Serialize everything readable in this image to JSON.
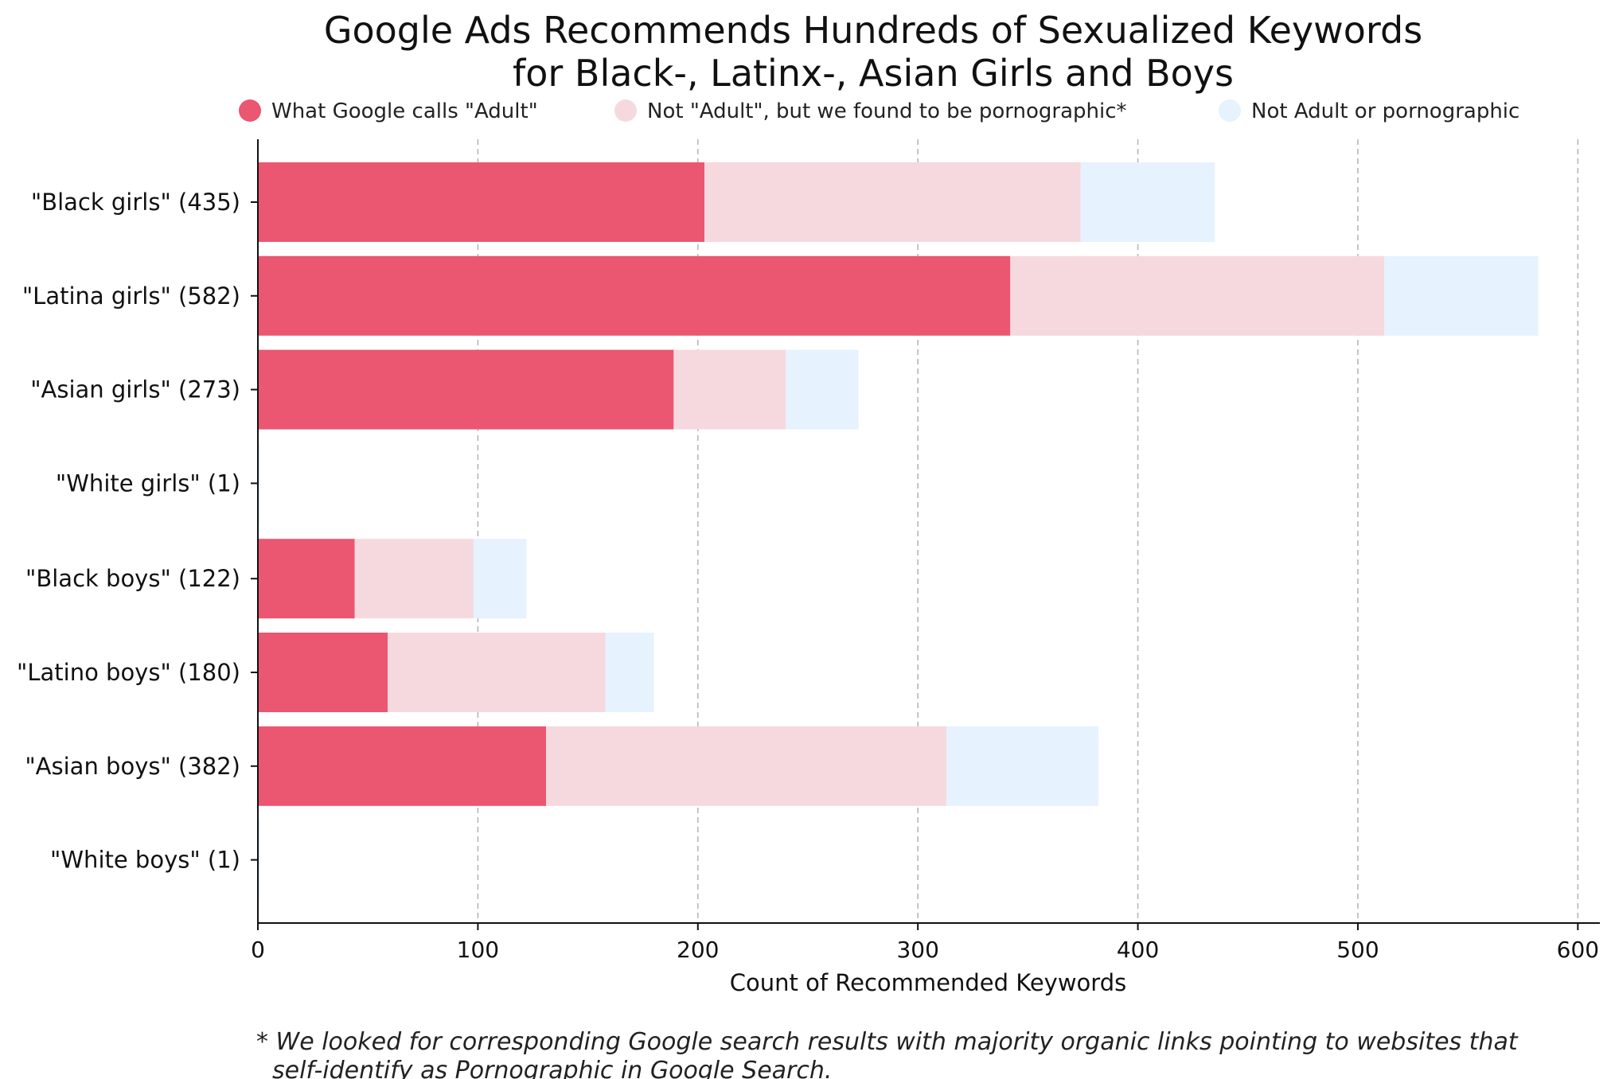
{
  "chart_data": {
    "type": "bar",
    "orientation": "horizontal",
    "stacked": true,
    "title": [
      "Google Ads Recommends Hundreds of Sexualized Keywords",
      "for Black-, Latinx-, Asian Girls and Boys"
    ],
    "xlabel": "Count of Recommended Keywords",
    "ylabel": "",
    "xlim": [
      0,
      610
    ],
    "xticks": [
      "0",
      "100",
      "200",
      "300",
      "400",
      "500",
      "600"
    ],
    "grid": "vertical dashed",
    "legend_position": "top",
    "categories": [
      "\"Black girls\" (435)",
      "\"Latina girls\" (582)",
      "\"Asian girls\" (273)",
      "\"White girls\" (1)",
      "\"Black boys\" (122)",
      "\"Latino boys\" (180)",
      "\"Asian boys\" (382)",
      "\"White boys\" (1)"
    ],
    "series": [
      {
        "name": "What Google calls \"Adult\"",
        "color": "#eb5671",
        "values": [
          203,
          342,
          189,
          0,
          44,
          59,
          131,
          0
        ]
      },
      {
        "name": "Not \"Adult\", but we found to be pornographic*",
        "color": "#f6d9df",
        "values": [
          171,
          170,
          51,
          0,
          54,
          99,
          182,
          0
        ]
      },
      {
        "name": "Not Adult or pornographic",
        "color": "#e6f2fd",
        "values": [
          61,
          70,
          33,
          1,
          24,
          22,
          69,
          1
        ]
      }
    ],
    "footnote": [
      "* We looked for corresponding Google search results with majority organic links pointing to websites that",
      "self-identify as Pornographic in Google Search."
    ]
  }
}
